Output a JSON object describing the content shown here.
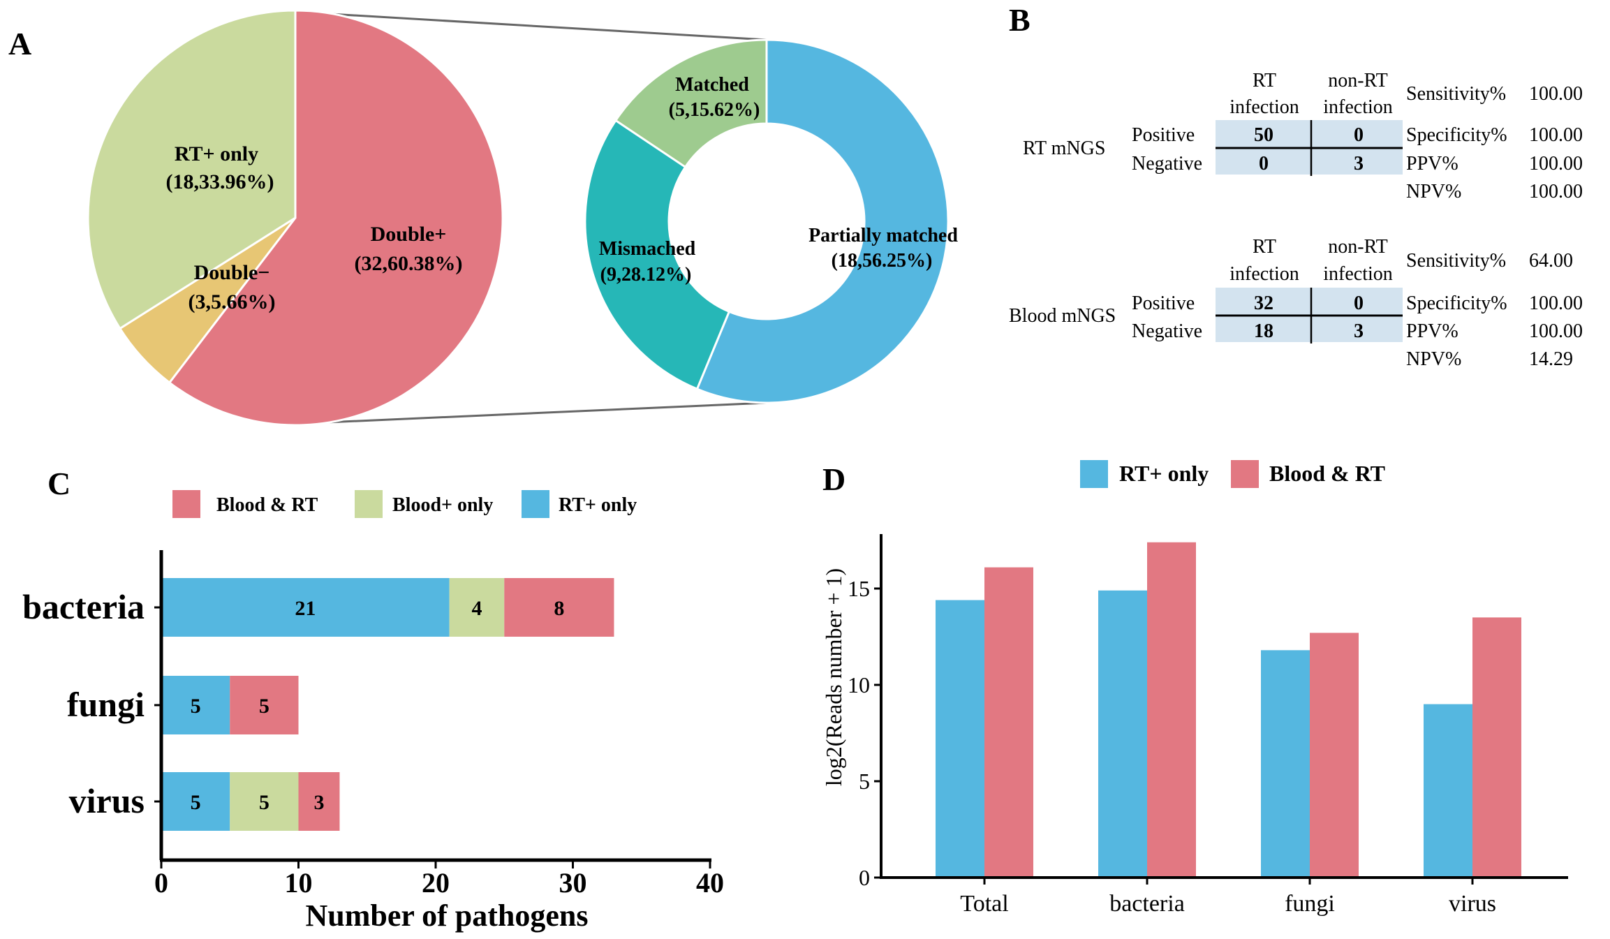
{
  "panel_labels": {
    "A": "A",
    "B": "B",
    "C": "C",
    "D": "D"
  },
  "colors": {
    "pink": "#E27882",
    "green": "#CADA9E",
    "yellow": "#E7C674",
    "blue": "#55B7E0",
    "teal": "#26B7B7",
    "sage": "#9ECB8F",
    "table_cell": "#D3E3EF",
    "connector": "#666666"
  },
  "chart_data": [
    {
      "id": "A-pie",
      "type": "pie",
      "title": "",
      "slices": [
        {
          "name": "Double+",
          "value": 60.38,
          "label_line1": "Double+",
          "label_line2": "(32,60.38%)",
          "color": "#E27882"
        },
        {
          "name": "Double−",
          "value": 5.66,
          "label_line1": "Double−",
          "label_line2": "(3,5.66%)",
          "color": "#E7C674"
        },
        {
          "name": "RT+ only",
          "value": 33.96,
          "label_line1": "RT+ only",
          "label_line2": "(18,33.96%)",
          "color": "#CADA9E"
        }
      ]
    },
    {
      "id": "A-donut",
      "type": "pie",
      "title": "",
      "slices": [
        {
          "name": "Partially matched",
          "value": 56.25,
          "label_line1": "Partially matched",
          "label_line2": "(18,56.25%)",
          "color": "#55B7E0"
        },
        {
          "name": "Mismached",
          "value": 28.12,
          "label_line1": "Mismached",
          "label_line2": "(9,28.12%)",
          "color": "#26B7B7"
        },
        {
          "name": "Matched",
          "value": 15.62,
          "label_line1": "Matched",
          "label_line2": "(5,15.62%)",
          "color": "#9ECB8F"
        }
      ]
    },
    {
      "id": "B-tables",
      "type": "table",
      "col_headers": [
        [
          "RT",
          "infection"
        ],
        [
          "non-RT",
          "infection"
        ]
      ],
      "row_labels": [
        "Positive",
        "Negative"
      ],
      "tables": [
        {
          "name": "RT mNGS",
          "cells": [
            [
              "50",
              "0"
            ],
            [
              "0",
              "3"
            ]
          ],
          "metrics": [
            {
              "label": "Sensitivity%",
              "value": "100.00"
            },
            {
              "label": "Specificity%",
              "value": "100.00"
            },
            {
              "label": "PPV%",
              "value": "100.00"
            },
            {
              "label": "NPV%",
              "value": "100.00"
            }
          ]
        },
        {
          "name": "Blood mNGS",
          "cells": [
            [
              "32",
              "0"
            ],
            [
              "18",
              "3"
            ]
          ],
          "metrics": [
            {
              "label": "Sensitivity%",
              "value": "64.00"
            },
            {
              "label": "Specificity%",
              "value": "100.00"
            },
            {
              "label": "PPV%",
              "value": "100.00"
            },
            {
              "label": "NPV%",
              "value": "14.29"
            }
          ]
        }
      ]
    },
    {
      "id": "C-bars",
      "type": "bar",
      "orientation": "horizontal",
      "stacked": true,
      "categories": [
        "bacteria",
        "fungi",
        "virus"
      ],
      "series": [
        {
          "name": "RT+ only",
          "values": [
            21,
            5,
            5
          ],
          "color": "#55B7E0"
        },
        {
          "name": "Blood+ only",
          "values": [
            4,
            0,
            5
          ],
          "color": "#CADA9E"
        },
        {
          "name": "Blood & RT",
          "values": [
            8,
            5,
            3
          ],
          "color": "#E27882"
        }
      ],
      "legend_order": [
        "Blood & RT",
        "Blood+ only",
        "RT+ only"
      ],
      "xlabel": "Number of pathogens",
      "ylabel": "",
      "xlim": [
        0,
        40
      ],
      "xticks": [
        0,
        10,
        20,
        30,
        40
      ]
    },
    {
      "id": "D-bars",
      "type": "bar",
      "orientation": "vertical",
      "stacked": false,
      "categories": [
        "Total",
        "bacteria",
        "fungi",
        "virus"
      ],
      "series": [
        {
          "name": "RT+ only",
          "values": [
            14.4,
            14.9,
            11.8,
            9.0
          ],
          "color": "#55B7E0"
        },
        {
          "name": "Blood & RT",
          "values": [
            16.1,
            17.4,
            12.7,
            13.5
          ],
          "color": "#E27882"
        }
      ],
      "legend_order": [
        "RT+ only",
        "Blood & RT"
      ],
      "xlabel": "",
      "ylabel": "log2(Reads number + 1)",
      "ylim": [
        0,
        18
      ],
      "yticks": [
        0,
        5,
        10,
        15
      ]
    }
  ]
}
